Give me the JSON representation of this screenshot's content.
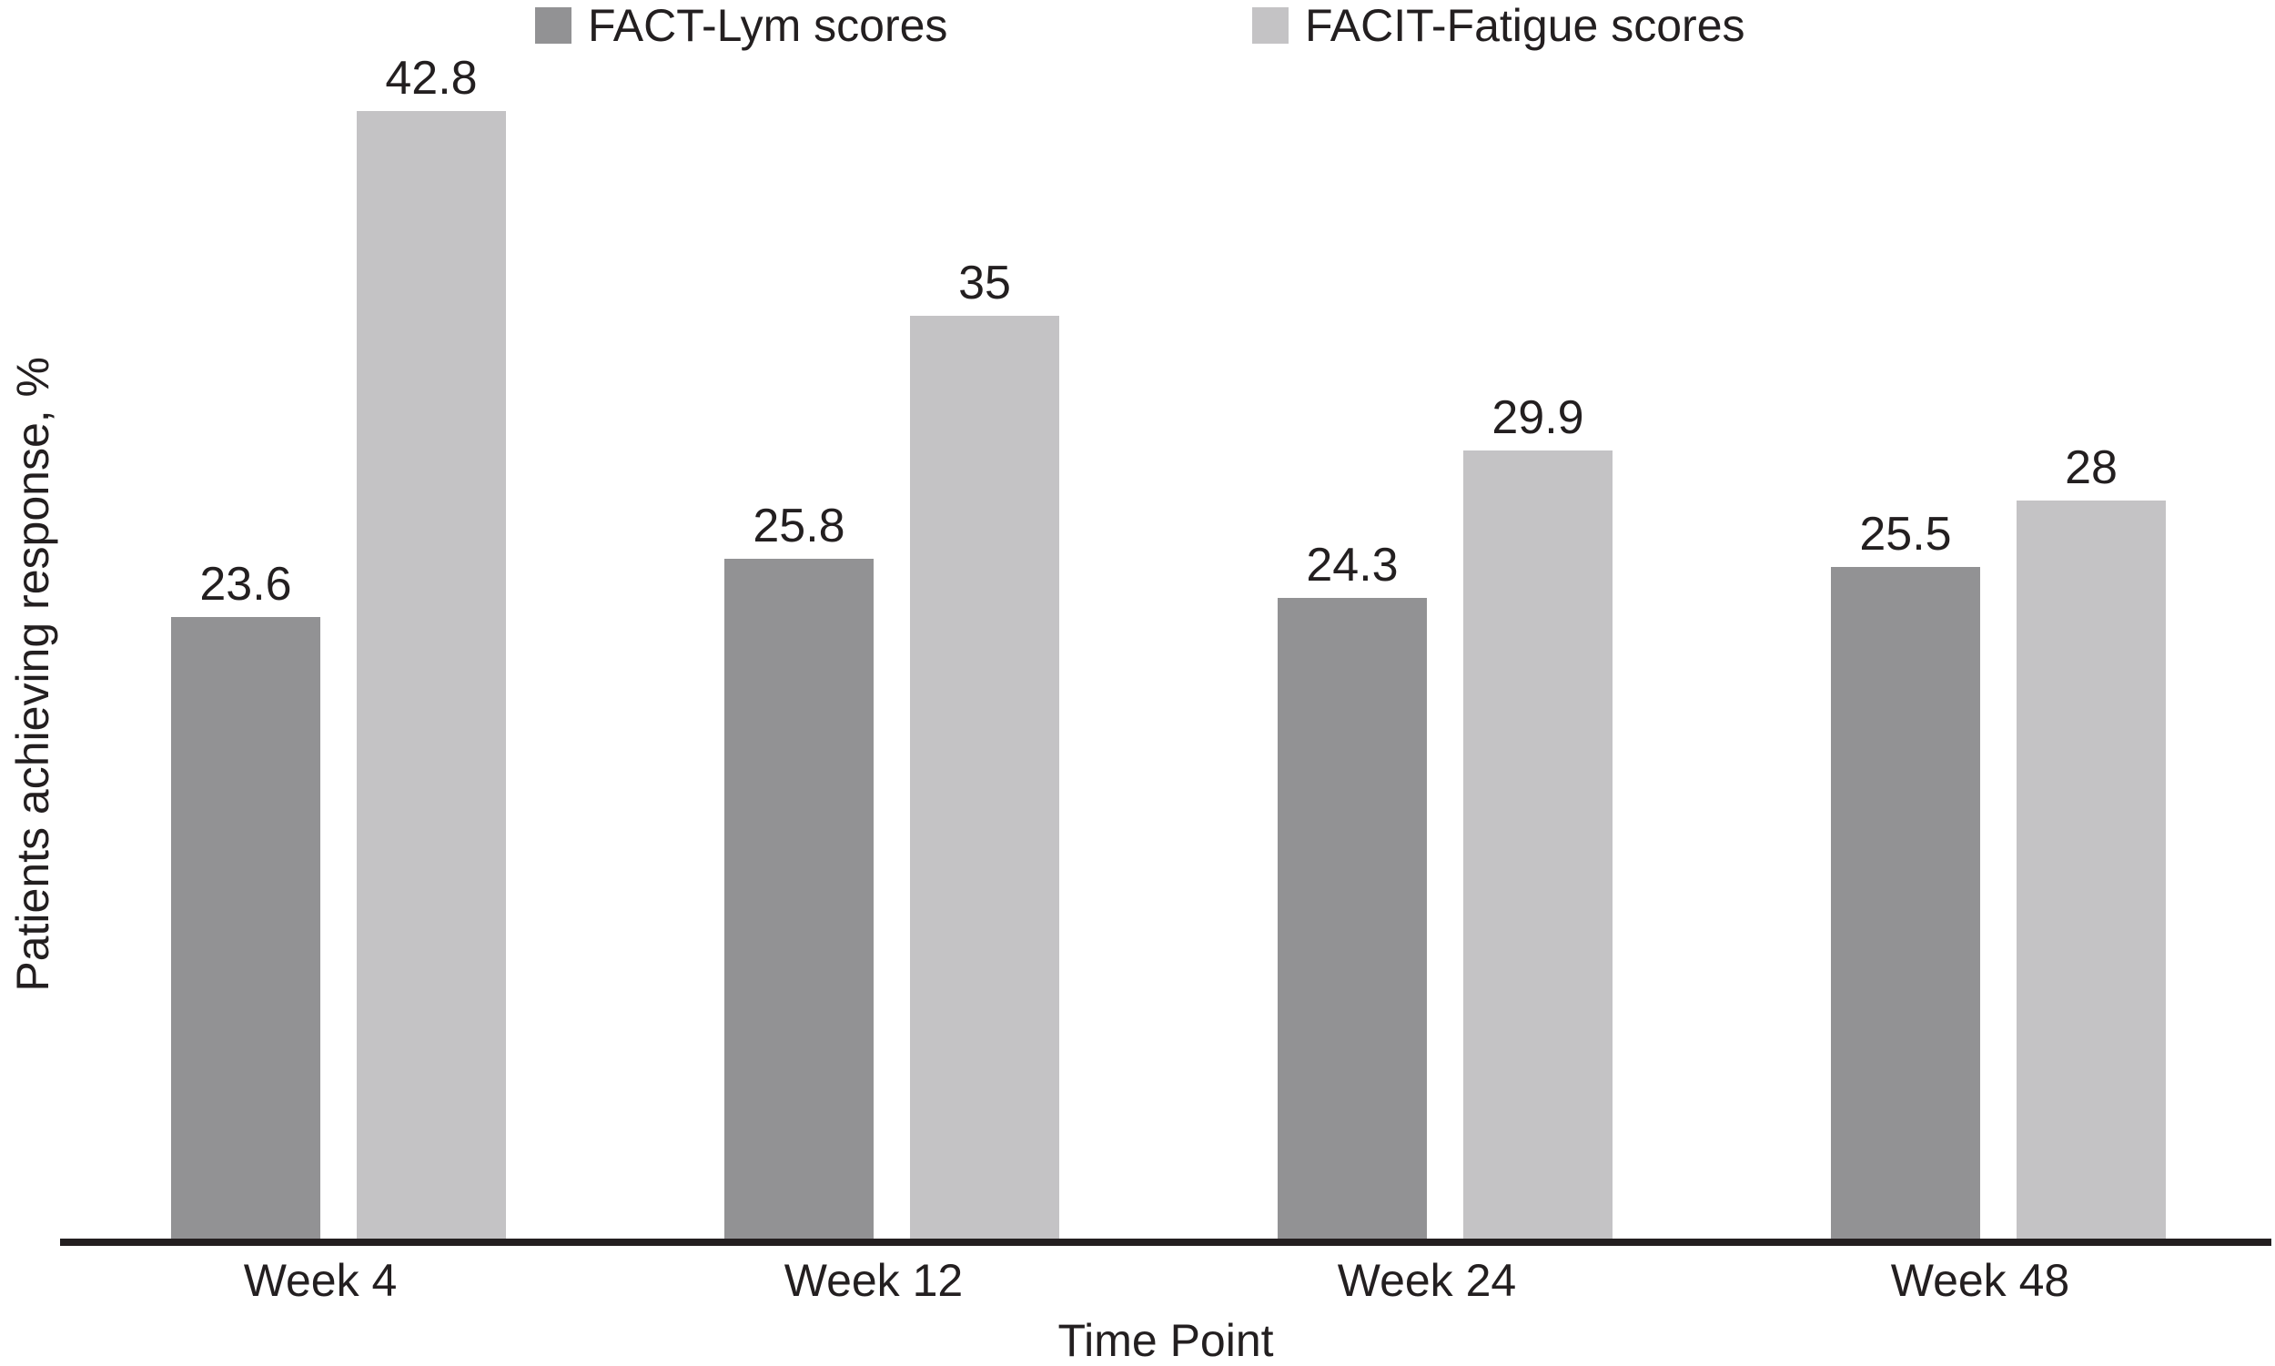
{
  "chart_data": {
    "type": "bar",
    "title": "",
    "xlabel": "Time Point",
    "ylabel": "Patients achieving response, %",
    "categories": [
      "Week 4",
      "Week 12",
      "Week 24",
      "Week 48"
    ],
    "series": [
      {
        "name": "FACT-Lym scores",
        "color": "#929294",
        "values": [
          23.6,
          25.8,
          24.3,
          25.5
        ],
        "labels": [
          "23.6",
          "25.8",
          "24.3",
          "25.5"
        ]
      },
      {
        "name": "FACIT-Fatigue scores",
        "color": "#c4c3c5",
        "values": [
          42.8,
          35,
          29.9,
          28
        ],
        "labels": [
          "42.8",
          "35",
          "29.9",
          "28"
        ]
      }
    ],
    "ylim": [
      0,
      47
    ],
    "grid": false,
    "legend_position": "top",
    "value_labels_shown": true,
    "axis_color": "#231f20",
    "text_color": "#231f20",
    "background_color": "#ffffff"
  }
}
